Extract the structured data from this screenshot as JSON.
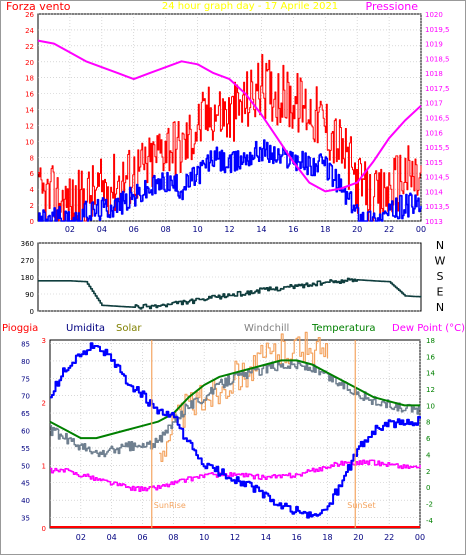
{
  "top_chart": {
    "left_title": "Forza vento",
    "center_title": "24 hour graph day - 17 Aprile 2021",
    "right_title": "Pressione",
    "colors": {
      "wind_gust": "#ff0000",
      "wind_avg": "#0000ff",
      "pressure": "#ff00ff",
      "left_axis": "#ff0000",
      "right_axis": "#ff00ff",
      "center_title": "#ffff00"
    }
  },
  "wind_dir_chart": {
    "compass": [
      "N",
      "W",
      "S",
      "E",
      "N"
    ],
    "color": "#0f3d3d"
  },
  "bottom_chart": {
    "legend": [
      {
        "label": "Pioggia",
        "color": "#ff0000"
      },
      {
        "label": "Umidita",
        "color": "#000080"
      },
      {
        "label": "Solar",
        "color": "#808000"
      },
      {
        "label": "Windchill",
        "color": "#808080"
      },
      {
        "label": "Temperatura",
        "color": "#008000"
      },
      {
        "label": "Dew Point (°C)",
        "color": "#ff00ff"
      }
    ],
    "annotations": [
      "SunRise",
      "SunSet"
    ],
    "colors": {
      "humidity": "#0000ff",
      "temperature": "#008000",
      "windchill": "#708090",
      "dew_point": "#ff00ff",
      "solar": "#f4a460",
      "rain": "#ff0000",
      "sun_lines": "#f4a460"
    }
  },
  "chart_data": [
    {
      "type": "line",
      "title": "24 hour graph day - 17 Aprile 2021",
      "x_ticks": [
        "02",
        "04",
        "06",
        "08",
        "10",
        "12",
        "14",
        "16",
        "18",
        "20",
        "22",
        "00"
      ],
      "y_left": {
        "label": "Forza vento",
        "ticks": [
          "0",
          "2",
          "4",
          "6",
          "8",
          "10",
          "12",
          "14",
          "16",
          "18",
          "20",
          "22",
          "24",
          "26"
        ],
        "ylim": [
          0,
          26
        ]
      },
      "y_right": {
        "label": "Pressione",
        "ticks": [
          "1013",
          "1013,5",
          "1014",
          "1014,5",
          "1015",
          "1015,5",
          "1016",
          "1016,5",
          "1017",
          "1017,5",
          "1018",
          "1018,5",
          "1019",
          "1019,5",
          "1020"
        ],
        "ylim": [
          1013,
          1020
        ]
      },
      "series": [
        {
          "name": "Pressione",
          "axis": "right",
          "x": [
            0,
            1,
            2,
            3,
            4,
            5,
            6,
            7,
            8,
            9,
            10,
            11,
            12,
            13,
            14,
            15,
            16,
            17,
            18,
            19,
            20,
            21,
            22,
            23,
            24
          ],
          "values": [
            1019.1,
            1019,
            1018.7,
            1018.4,
            1018.2,
            1018.0,
            1017.8,
            1018.0,
            1018.2,
            1018.4,
            1018.3,
            1018.0,
            1017.8,
            1017.3,
            1016.6,
            1015.8,
            1015.0,
            1014.3,
            1014.0,
            1014.1,
            1014.3,
            1015.0,
            1015.8,
            1016.4,
            1016.9
          ]
        },
        {
          "name": "wind_gust",
          "axis": "left",
          "x": [
            0,
            1,
            2,
            3,
            4,
            5,
            6,
            7,
            8,
            9,
            10,
            11,
            12,
            13,
            14,
            15,
            16,
            17,
            18,
            19,
            20,
            21,
            22,
            23,
            24
          ],
          "values": [
            3,
            3,
            2,
            3,
            4,
            5,
            6,
            7,
            10,
            9,
            12,
            14,
            13,
            15,
            17,
            16,
            15,
            14,
            12,
            9,
            5,
            2,
            4,
            6,
            5
          ]
        },
        {
          "name": "wind_avg",
          "axis": "left",
          "x": [
            0,
            1,
            2,
            3,
            4,
            5,
            6,
            7,
            8,
            9,
            10,
            11,
            12,
            13,
            14,
            15,
            16,
            17,
            18,
            19,
            20,
            21,
            22,
            23,
            24
          ],
          "values": [
            0,
            0.5,
            0,
            1,
            1.5,
            2,
            3,
            4,
            5,
            4,
            6,
            8,
            7,
            8,
            9,
            8,
            8,
            7,
            7,
            4,
            1,
            0,
            1,
            2,
            2
          ]
        }
      ]
    },
    {
      "type": "line",
      "title": "",
      "y_ticks": [
        "0",
        "90",
        "180",
        "270",
        "360"
      ],
      "ylim": [
        0,
        360
      ],
      "series": [
        {
          "name": "wind_direction",
          "x": [
            0,
            1,
            2,
            3,
            4,
            5,
            6,
            7,
            8,
            9,
            10,
            11,
            12,
            13,
            14,
            15,
            16,
            17,
            18,
            19,
            20,
            21,
            22,
            23,
            24
          ],
          "values": [
            160,
            160,
            160,
            155,
            30,
            25,
            20,
            25,
            30,
            45,
            55,
            70,
            85,
            95,
            110,
            120,
            130,
            140,
            150,
            160,
            165,
            160,
            155,
            80,
            75
          ]
        }
      ]
    },
    {
      "type": "line",
      "title": "",
      "x_ticks": [
        "02",
        "04",
        "06",
        "08",
        "10",
        "12",
        "14",
        "16",
        "18",
        "20",
        "22",
        "00"
      ],
      "y_left": {
        "ticks": [
          "35",
          "40",
          "45",
          "50",
          "55",
          "60",
          "65",
          "70",
          "75",
          "80",
          "85"
        ],
        "ylim": [
          32,
          86
        ]
      },
      "y_rain": {
        "ticks": [
          "0",
          "1",
          "2",
          "3"
        ],
        "ylim": [
          0,
          3
        ]
      },
      "y_right": {
        "ticks": [
          "-4",
          "-2",
          "0",
          "2",
          "4",
          "6",
          "8",
          "10",
          "12",
          "14",
          "16",
          "18"
        ],
        "ylim": [
          -5,
          18
        ]
      },
      "series": [
        {
          "name": "Umidita",
          "axis": "left",
          "x": [
            0,
            1,
            2,
            3,
            4,
            5,
            6,
            7,
            8,
            9,
            10,
            11,
            12,
            13,
            14,
            15,
            16,
            17,
            18,
            19,
            20,
            21,
            22,
            23,
            24
          ],
          "values": [
            70,
            78,
            82,
            85,
            80,
            74,
            70,
            65,
            64,
            56,
            50,
            48,
            46,
            44,
            41,
            38,
            37,
            35,
            38,
            46,
            55,
            60,
            62,
            62,
            63
          ]
        },
        {
          "name": "Temperatura",
          "axis": "right",
          "x": [
            0,
            1,
            2,
            3,
            4,
            5,
            6,
            7,
            8,
            9,
            10,
            11,
            12,
            13,
            14,
            15,
            16,
            17,
            18,
            19,
            20,
            21,
            22,
            23,
            24
          ],
          "values": [
            8,
            7,
            6,
            6,
            6.5,
            7,
            7.5,
            8,
            9,
            11,
            12.5,
            13.5,
            14,
            14.5,
            15,
            15.5,
            15.5,
            15,
            14,
            13,
            12,
            11,
            10.5,
            10,
            10
          ]
        },
        {
          "name": "Windchill",
          "axis": "right",
          "x": [
            0,
            1,
            2,
            3,
            4,
            5,
            6,
            7,
            8,
            9,
            10,
            11,
            12,
            13,
            14,
            15,
            16,
            17,
            18,
            19,
            20,
            21,
            22,
            23,
            24
          ],
          "values": [
            7,
            6,
            5,
            4,
            4.5,
            5,
            5,
            5.5,
            8,
            10,
            11,
            12.5,
            13.5,
            14,
            14.5,
            15,
            15,
            14.5,
            13.5,
            12.5,
            11.5,
            10.5,
            10,
            9.5,
            9.5
          ]
        },
        {
          "name": "Dew Point (°C)",
          "axis": "right",
          "x": [
            0,
            1,
            2,
            3,
            4,
            5,
            6,
            7,
            8,
            9,
            10,
            11,
            12,
            13,
            14,
            15,
            16,
            17,
            18,
            19,
            20,
            21,
            22,
            23,
            24
          ],
          "values": [
            2,
            2,
            1.5,
            1,
            0.5,
            0,
            -0.3,
            0,
            0.5,
            1,
            1.5,
            1.5,
            1.5,
            1.3,
            1.2,
            1.3,
            1.5,
            2,
            2.5,
            3,
            3,
            3,
            2.8,
            2.5,
            2.5
          ]
        },
        {
          "name": "Solar",
          "axis": "right",
          "x": [
            0,
            1,
            2,
            3,
            4,
            5,
            6,
            7,
            8,
            9,
            10,
            11,
            12,
            13,
            14,
            15,
            16,
            17,
            18,
            19,
            20,
            21,
            22,
            23,
            24
          ],
          "values": [
            null,
            null,
            null,
            null,
            null,
            null,
            null,
            4,
            8,
            10,
            11,
            12,
            13.5,
            14.5,
            16,
            17,
            17,
            17,
            16,
            null,
            null,
            null,
            null,
            null,
            null
          ]
        },
        {
          "name": "Pioggia",
          "axis": "rain",
          "x": [
            0,
            24
          ],
          "values": [
            0,
            0
          ]
        }
      ]
    }
  ]
}
